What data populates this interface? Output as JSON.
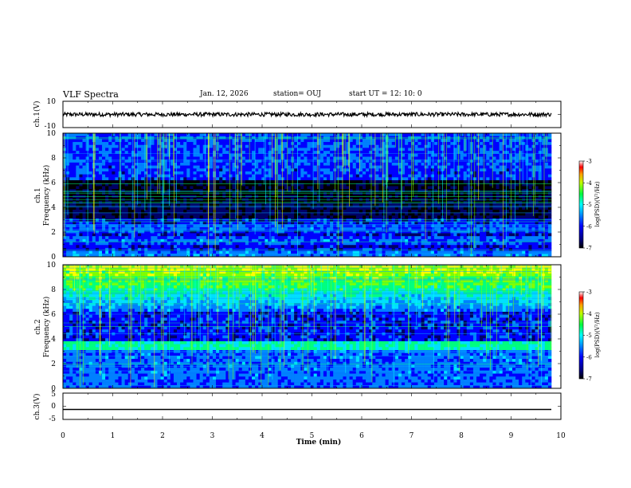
{
  "header": {
    "title": "VLF Spectra",
    "date": "Jan. 12, 2026",
    "station": "station= OUJ",
    "start": "start  UT  =   12: 10: 0"
  },
  "colors": {
    "frame": "#000000",
    "background": "#ffffff",
    "colormap": [
      "#000000",
      "#000066",
      "#0000ff",
      "#0080ff",
      "#00e0ff",
      "#00ff80",
      "#80ff00",
      "#ffff00",
      "#ff8000",
      "#ff0000",
      "#ffffff"
    ]
  },
  "chart_data": [
    {
      "type": "line",
      "name": "ch1-waveform",
      "ylabel": "ch.1(V)",
      "ylim": [
        -10,
        10
      ],
      "yticks": [
        "10",
        "-10"
      ],
      "xlim": [
        0,
        10
      ],
      "description_values": {
        "mean": 0,
        "amplitude_approx": 1.5
      }
    },
    {
      "type": "heatmap",
      "name": "ch1-spectrogram",
      "ylabel": "ch.1",
      "ylabel2": "Frequency  (kHz)",
      "ylim": [
        0,
        10
      ],
      "yticks": [
        "0",
        "2",
        "4",
        "6",
        "8",
        "10"
      ],
      "xlim": [
        0,
        10
      ],
      "colorbar": {
        "label": "log(PSD)(V²/Hz)",
        "range": [
          -7,
          -3
        ],
        "ticks": [
          "-3",
          "-4",
          "-5",
          "-6",
          "-7"
        ]
      }
    },
    {
      "type": "heatmap",
      "name": "ch2-spectrogram",
      "ylabel": "ch.2",
      "ylabel2": "Frequency  (kHz)",
      "ylim": [
        0,
        10
      ],
      "yticks": [
        "0",
        "2",
        "4",
        "6",
        "8",
        "10"
      ],
      "xlim": [
        0,
        10
      ],
      "colorbar": {
        "label": "log(PSD)(V²/Hz)",
        "range": [
          -7,
          -3
        ],
        "ticks": [
          "-3",
          "-4",
          "-5",
          "-6",
          "-7"
        ]
      }
    },
    {
      "type": "line",
      "name": "ch3-waveform",
      "ylabel": "ch.3(V)",
      "ylim": [
        -5,
        5
      ],
      "yticks": [
        "5",
        "0",
        "-5"
      ],
      "values_constant": -1.2,
      "xlim": [
        0,
        10
      ],
      "xlabel": "Time  (min)",
      "xticks": [
        "0",
        "1",
        "2",
        "3",
        "4",
        "5",
        "6",
        "7",
        "8",
        "9",
        "10"
      ]
    }
  ]
}
